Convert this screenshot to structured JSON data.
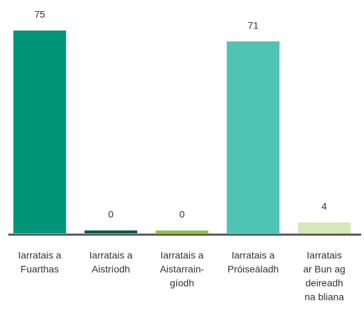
{
  "chart_data": {
    "type": "bar",
    "categories": [
      [
        "Iarratais a",
        "Fuarthas"
      ],
      [
        "Iarratais a",
        "Aistríodh"
      ],
      [
        "Iarratais a",
        "Aistarrain-",
        "gíodh"
      ],
      [
        "Iarratais a",
        "Próiseáladh"
      ],
      [
        "Iarratais",
        "ar Bun ag",
        "deireadh",
        "na bliana"
      ]
    ],
    "values": [
      75,
      0,
      0,
      71,
      4
    ],
    "colors": [
      "#009579",
      "#00584a",
      "#8dc63f",
      "#4dc4b4",
      "#d6e9b8"
    ],
    "ylim": [
      0,
      75
    ]
  }
}
